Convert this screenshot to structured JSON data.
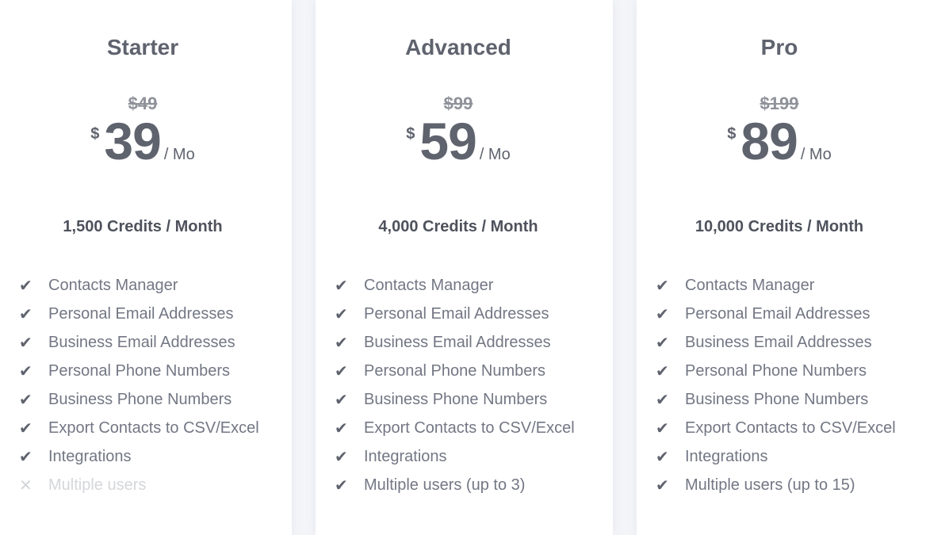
{
  "plans": [
    {
      "name": "Starter",
      "old_price": "$49",
      "currency": "$",
      "price": "39",
      "period": "/ Mo",
      "credits": "1,500 Credits / Month",
      "features": [
        {
          "label": "Contacts Manager",
          "icon": "check-icon",
          "included": true
        },
        {
          "label": "Personal Email Addresses",
          "icon": "check-icon",
          "included": true
        },
        {
          "label": "Business Email Addresses",
          "icon": "check-icon",
          "included": true
        },
        {
          "label": "Personal Phone Numbers",
          "icon": "check-icon",
          "included": true
        },
        {
          "label": "Business Phone Numbers",
          "icon": "check-icon",
          "included": true
        },
        {
          "label": "Export Contacts to CSV/Excel",
          "icon": "check-icon",
          "included": true
        },
        {
          "label": "Integrations",
          "icon": "check-icon",
          "included": true
        },
        {
          "label": "Multiple users",
          "icon": "x-icon",
          "included": false
        }
      ]
    },
    {
      "name": "Advanced",
      "old_price": "$99",
      "currency": "$",
      "price": "59",
      "period": "/ Mo",
      "credits": "4,000 Credits / Month",
      "features": [
        {
          "label": "Contacts Manager",
          "icon": "check-icon",
          "included": true
        },
        {
          "label": "Personal Email Addresses",
          "icon": "check-icon",
          "included": true
        },
        {
          "label": "Business Email Addresses",
          "icon": "check-icon",
          "included": true
        },
        {
          "label": "Personal Phone Numbers",
          "icon": "check-icon",
          "included": true
        },
        {
          "label": "Business Phone Numbers",
          "icon": "check-icon",
          "included": true
        },
        {
          "label": "Export Contacts to CSV/Excel",
          "icon": "check-icon",
          "included": true
        },
        {
          "label": "Integrations",
          "icon": "check-icon",
          "included": true
        },
        {
          "label": "Multiple users (up to 3)",
          "icon": "check-icon",
          "included": true
        }
      ]
    },
    {
      "name": "Pro",
      "old_price": "$199",
      "currency": "$",
      "price": "89",
      "period": "/ Mo",
      "credits": "10,000 Credits / Month",
      "features": [
        {
          "label": "Contacts Manager",
          "icon": "check-icon",
          "included": true
        },
        {
          "label": "Personal Email Addresses",
          "icon": "check-icon",
          "included": true
        },
        {
          "label": "Business Email Addresses",
          "icon": "check-icon",
          "included": true
        },
        {
          "label": "Personal Phone Numbers",
          "icon": "check-icon",
          "included": true
        },
        {
          "label": "Business Phone Numbers",
          "icon": "check-icon",
          "included": true
        },
        {
          "label": "Export Contacts to CSV/Excel",
          "icon": "check-icon",
          "included": true
        },
        {
          "label": "Integrations",
          "icon": "check-icon",
          "included": true
        },
        {
          "label": "Multiple users (up to 15)",
          "icon": "check-icon",
          "included": true
        }
      ]
    }
  ]
}
